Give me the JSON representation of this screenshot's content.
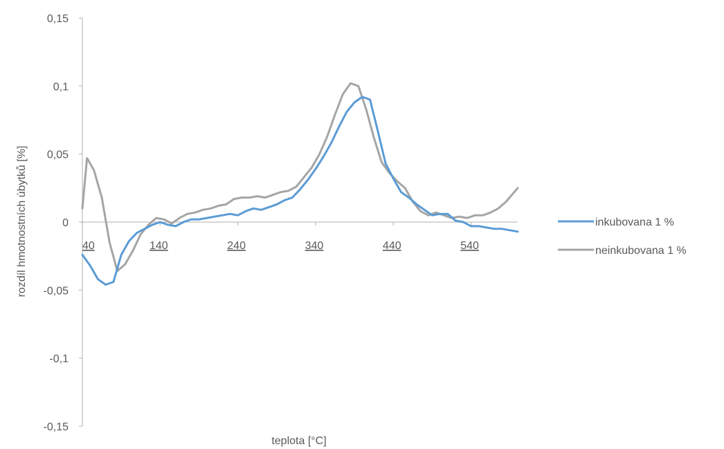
{
  "chart_data": {
    "type": "line",
    "xlabel": "teplota [°C]",
    "ylabel": "rozdíl hmotnostních úbytků [%]",
    "ylim": [
      -0.15,
      0.15
    ],
    "xlim": [
      40,
      600
    ],
    "yticks": [
      0.15,
      0.1,
      0.05,
      0,
      -0.05,
      -0.1,
      -0.15
    ],
    "ytick_labels": [
      "0,15",
      "0,1",
      "0,05",
      "0",
      "-0,05",
      "-0,1",
      "-0,15"
    ],
    "xticks": [
      40,
      140,
      240,
      340,
      440,
      540
    ],
    "xtick_labels": [
      "40",
      "140",
      "240",
      "340",
      "440",
      "540"
    ],
    "legend_position": "right",
    "grid": false,
    "series": [
      {
        "name": "inkubovana 1 %",
        "color": "#5b9bd5",
        "x": [
          40,
          50,
          60,
          70,
          80,
          90,
          100,
          110,
          120,
          130,
          140,
          150,
          160,
          170,
          180,
          190,
          200,
          210,
          220,
          230,
          240,
          250,
          260,
          270,
          280,
          290,
          300,
          310,
          320,
          330,
          340,
          350,
          360,
          370,
          380,
          390,
          400,
          410,
          420,
          430,
          440,
          450,
          460,
          470,
          480,
          490,
          500,
          510,
          520,
          530,
          540,
          550,
          560,
          570,
          580,
          590,
          600
        ],
        "y": [
          -0.024,
          -0.032,
          -0.042,
          -0.046,
          -0.044,
          -0.024,
          -0.014,
          -0.008,
          -0.005,
          -0.002,
          0.0,
          -0.002,
          -0.003,
          0.0,
          0.002,
          0.002,
          0.003,
          0.004,
          0.005,
          0.006,
          0.005,
          0.008,
          0.01,
          0.009,
          0.011,
          0.013,
          0.016,
          0.018,
          0.024,
          0.031,
          0.039,
          0.048,
          0.058,
          0.07,
          0.081,
          0.088,
          0.092,
          0.09,
          0.067,
          0.043,
          0.032,
          0.022,
          0.018,
          0.013,
          0.009,
          0.005,
          0.006,
          0.006,
          0.001,
          0.0,
          -0.003,
          -0.003,
          -0.004,
          -0.005,
          -0.005,
          -0.006,
          -0.007
        ]
      },
      {
        "name": "neinkubovana 1 %",
        "color": "#a5a5a5",
        "x": [
          40,
          46,
          55,
          65,
          75,
          85,
          95,
          105,
          115,
          125,
          135,
          145,
          155,
          165,
          175,
          185,
          195,
          205,
          215,
          225,
          235,
          245,
          255,
          265,
          275,
          285,
          295,
          305,
          315,
          325,
          335,
          345,
          355,
          365,
          375,
          385,
          395,
          405,
          415,
          425,
          435,
          445,
          455,
          465,
          475,
          485,
          495,
          505,
          515,
          525,
          535,
          545,
          555,
          565,
          575,
          585,
          600
        ],
        "y": [
          0.01,
          0.047,
          0.038,
          0.018,
          -0.015,
          -0.036,
          -0.031,
          -0.021,
          -0.009,
          -0.002,
          0.003,
          0.002,
          -0.001,
          0.003,
          0.006,
          0.007,
          0.009,
          0.01,
          0.012,
          0.013,
          0.017,
          0.018,
          0.018,
          0.019,
          0.018,
          0.02,
          0.022,
          0.023,
          0.026,
          0.033,
          0.04,
          0.05,
          0.063,
          0.079,
          0.094,
          0.102,
          0.1,
          0.083,
          0.062,
          0.044,
          0.036,
          0.03,
          0.025,
          0.015,
          0.008,
          0.005,
          0.007,
          0.005,
          0.003,
          0.004,
          0.003,
          0.005,
          0.005,
          0.007,
          0.01,
          0.015,
          0.025
        ]
      }
    ]
  }
}
